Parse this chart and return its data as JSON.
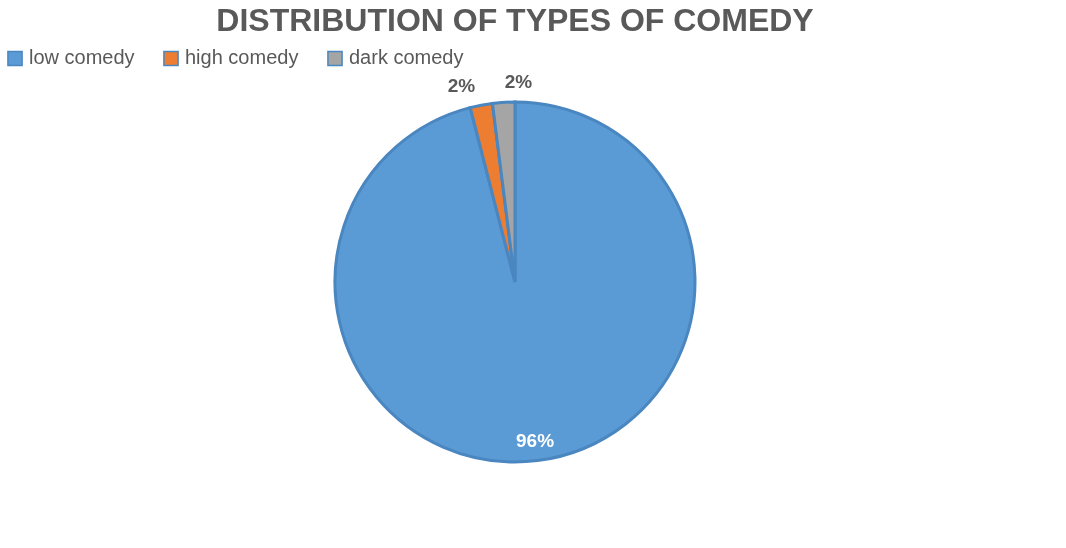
{
  "chart_data": {
    "type": "pie",
    "title": "DISTRIBUTION OF TYPES OF COMEDY",
    "categories": [
      "low comedy",
      "high comedy",
      "dark comedy"
    ],
    "values": [
      96,
      2,
      2
    ],
    "colors": [
      "#5b9bd5",
      "#ed7d31",
      "#a5a5a5"
    ],
    "value_labels": [
      "96%",
      "2%",
      "2%"
    ],
    "legend": "top"
  }
}
